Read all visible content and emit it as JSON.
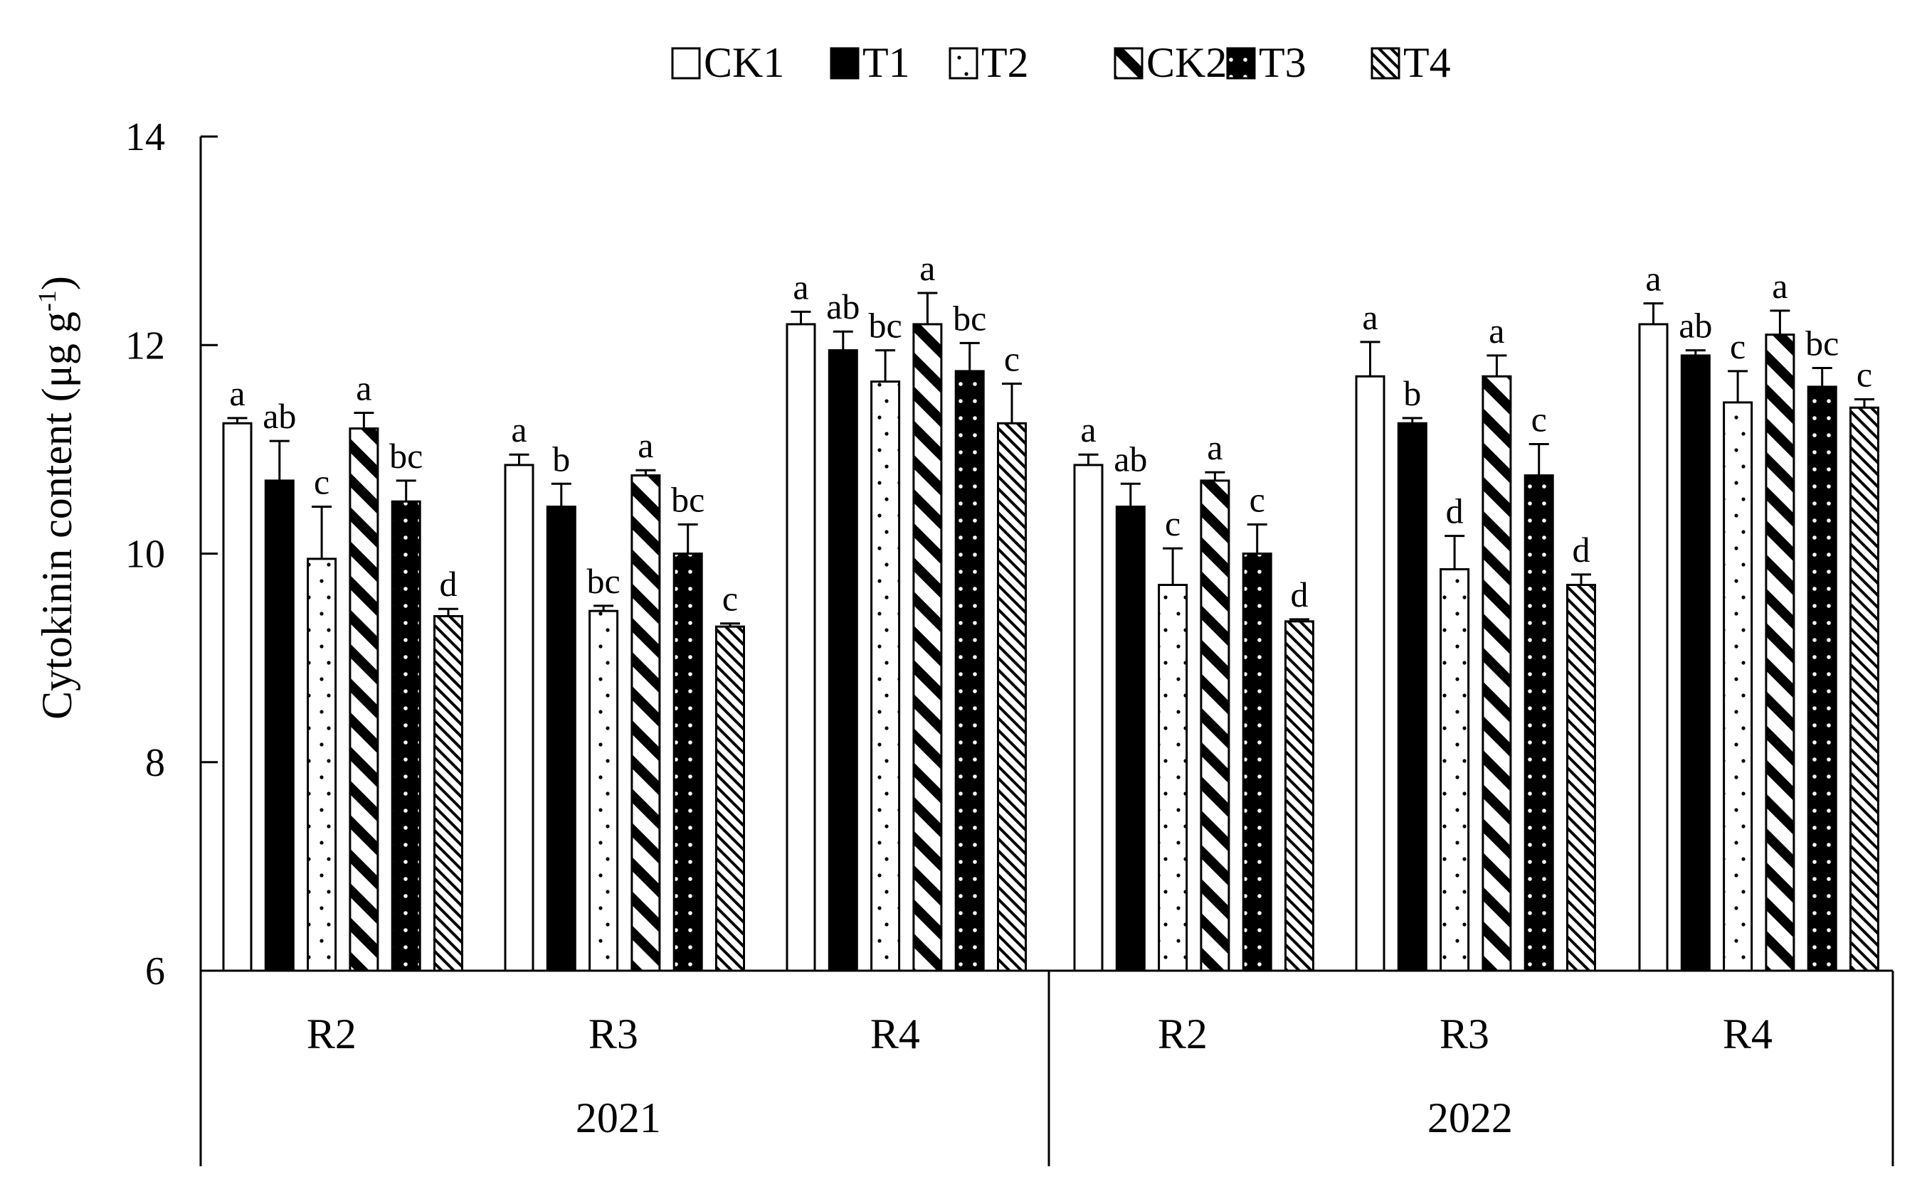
{
  "chart_data": {
    "type": "bar",
    "ylabel": "Cytokinin content (μg g",
    "ylabel_sup": "-1",
    "ylabel_close": ")",
    "ylim": [
      6,
      14
    ],
    "yticks": [
      6,
      8,
      10,
      12,
      14
    ],
    "legend_position": "top",
    "categories": [
      "R2",
      "R3",
      "R4",
      "R2",
      "R3",
      "R4"
    ],
    "groups": [
      {
        "label": "2021",
        "categories": [
          0,
          1,
          2
        ]
      },
      {
        "label": "2022",
        "categories": [
          3,
          4,
          5
        ]
      }
    ],
    "series": [
      {
        "name": "CK1",
        "pattern": "white",
        "values": [
          11.25,
          10.85,
          12.2,
          10.85,
          11.7,
          12.2
        ],
        "errors": [
          0.05,
          0.1,
          0.12,
          0.1,
          0.33,
          0.2
        ],
        "letters": [
          "a",
          "a",
          "a",
          "a",
          "a",
          "a"
        ]
      },
      {
        "name": "T1",
        "pattern": "black",
        "values": [
          10.7,
          10.45,
          11.95,
          10.45,
          11.25,
          11.9
        ],
        "errors": [
          0.38,
          0.22,
          0.18,
          0.22,
          0.05,
          0.05
        ],
        "letters": [
          "ab",
          "b",
          "ab",
          "ab",
          "b",
          "ab"
        ]
      },
      {
        "name": "T2",
        "pattern": "dots-sparse",
        "values": [
          9.95,
          9.45,
          11.65,
          9.7,
          9.85,
          11.45
        ],
        "errors": [
          0.5,
          0.05,
          0.3,
          0.35,
          0.32,
          0.3
        ],
        "letters": [
          "c",
          "bc",
          "bc",
          "c",
          "d",
          "c"
        ]
      },
      {
        "name": "CK2",
        "pattern": "diag-bold",
        "values": [
          11.2,
          10.75,
          12.2,
          10.7,
          11.7,
          12.1
        ],
        "errors": [
          0.15,
          0.05,
          0.3,
          0.08,
          0.2,
          0.23
        ],
        "letters": [
          "a",
          "a",
          "a",
          "a",
          "a",
          "a"
        ]
      },
      {
        "name": "T3",
        "pattern": "black-dots",
        "values": [
          10.5,
          10.0,
          11.75,
          10.0,
          10.75,
          11.6
        ],
        "errors": [
          0.2,
          0.28,
          0.27,
          0.28,
          0.3,
          0.18
        ],
        "letters": [
          "bc",
          "bc",
          "bc",
          "c",
          "c",
          "bc"
        ]
      },
      {
        "name": "T4",
        "pattern": "diag-fine",
        "values": [
          9.4,
          9.3,
          11.25,
          9.35,
          9.7,
          11.4
        ],
        "errors": [
          0.07,
          0.03,
          0.38,
          0.02,
          0.1,
          0.08
        ],
        "letters": [
          "d",
          "c",
          "c",
          "d",
          "d",
          "c"
        ]
      }
    ]
  }
}
